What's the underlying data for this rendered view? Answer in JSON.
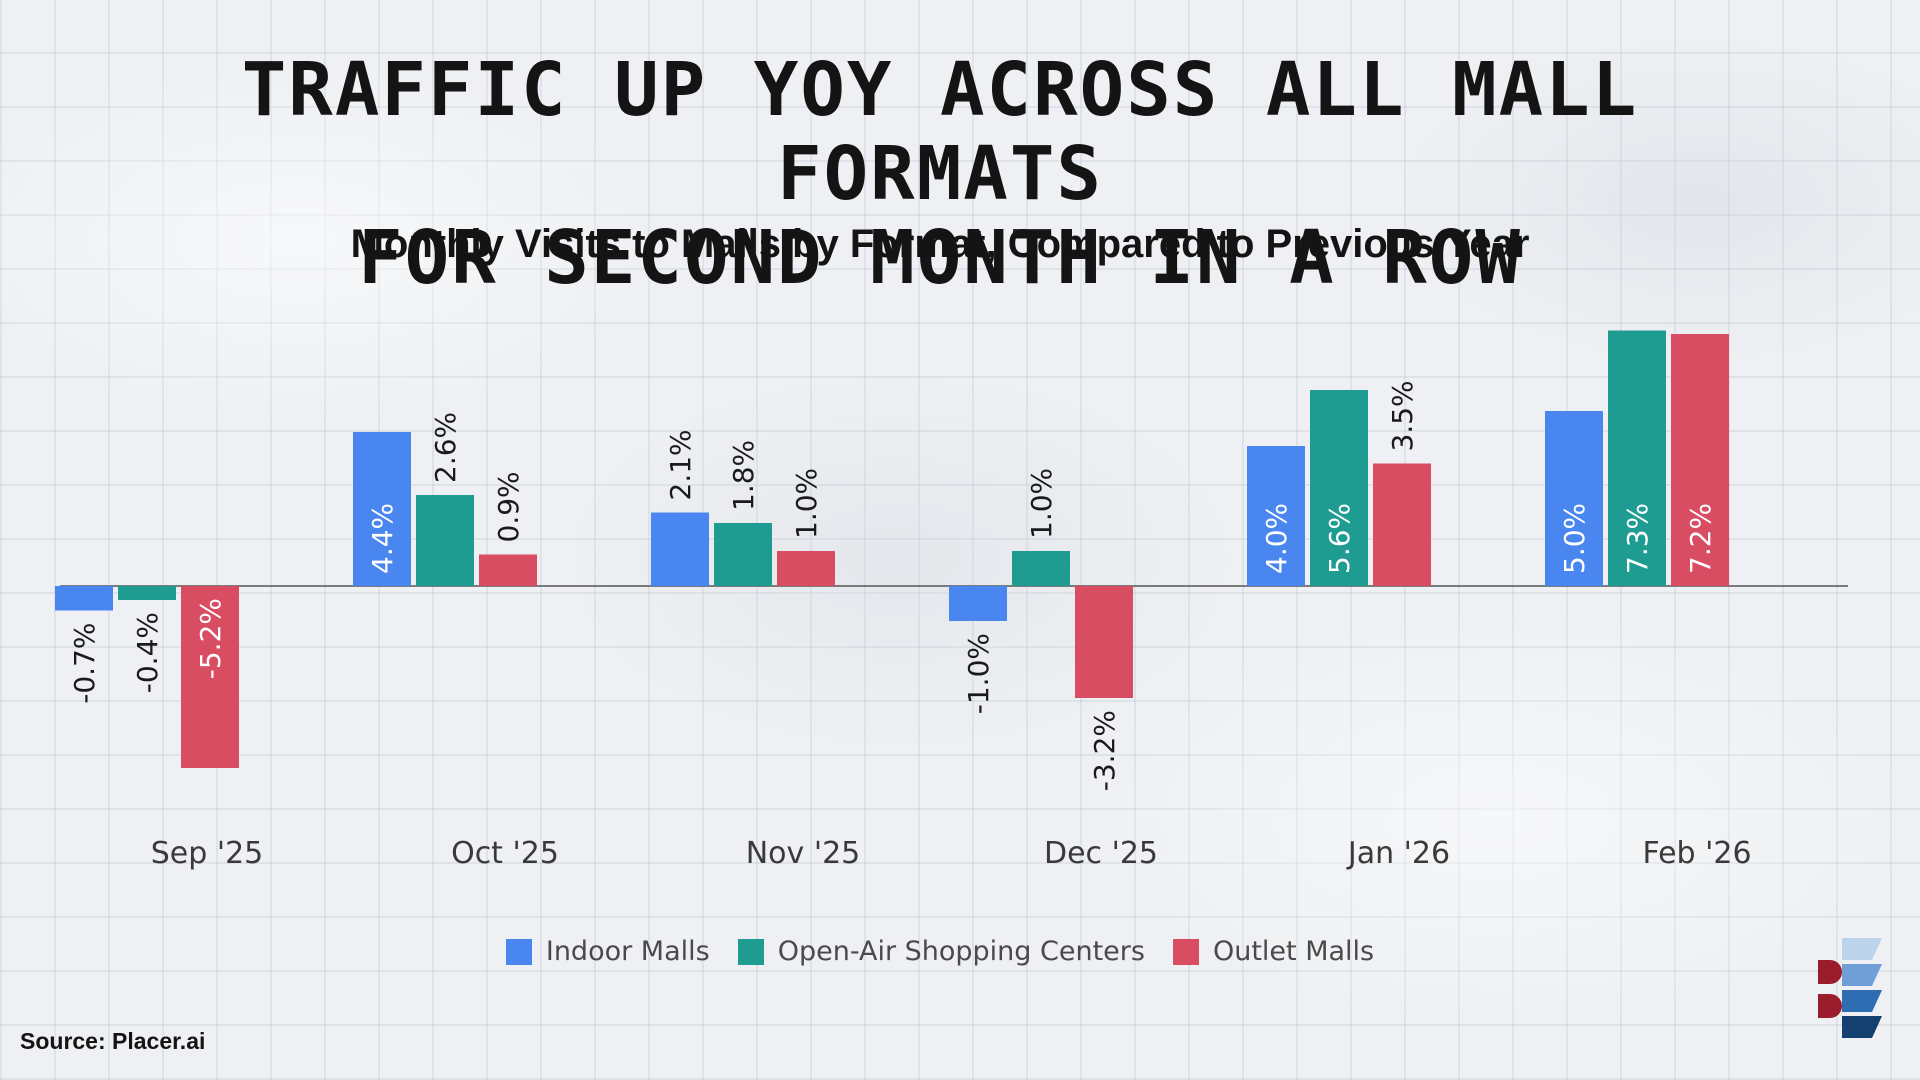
{
  "title_line1": "TRAFFIC UP YOY ACROSS ALL MALL FORMATS",
  "title_line2": "FOR SECOND MONTH IN A ROW",
  "subtitle": "Monthly Visits to Malls by Format, Compared to Previous Year",
  "source": "Source: Placer.ai",
  "logo_icon": "placer-logo-icon",
  "colors": {
    "indoor": "#4a86f0",
    "open_air": "#1f9c92",
    "outlet": "#d94d63",
    "label_dark": "#1a1a1a",
    "label_light": "#ffffff",
    "baseline": "#555555",
    "tick": "#3a3a3a"
  },
  "chart_data": {
    "type": "bar",
    "title": "Monthly Visits to Malls by Format, Compared to Previous Year",
    "categories": [
      "Sep '25",
      "Oct '25",
      "Nov '25",
      "Dec '25",
      "Jan '26",
      "Feb '26"
    ],
    "series": [
      {
        "name": "Indoor Malls",
        "values": [
          -0.7,
          4.4,
          2.1,
          -1.0,
          4.0,
          5.0
        ],
        "labels": [
          "-0.7%",
          "4.4%",
          "2.1%",
          "-1.0%",
          "4.0%",
          "5.0%"
        ]
      },
      {
        "name": "Open-Air Shopping Centers",
        "values": [
          -0.4,
          2.6,
          1.8,
          1.0,
          5.6,
          7.3
        ],
        "labels": [
          "-0.4%",
          "2.6%",
          "1.8%",
          "1.0%",
          "5.6%",
          "7.3%"
        ]
      },
      {
        "name": "Outlet Malls",
        "values": [
          -5.2,
          0.9,
          1.0,
          -3.2,
          3.5,
          7.2
        ],
        "labels": [
          "-5.2%",
          "0.9%",
          "1.0%",
          "-3.2%",
          "3.5%",
          "7.2%"
        ]
      }
    ],
    "ylim": [
      -7,
      7.5
    ],
    "grid": false,
    "legend_position": "bottom"
  }
}
